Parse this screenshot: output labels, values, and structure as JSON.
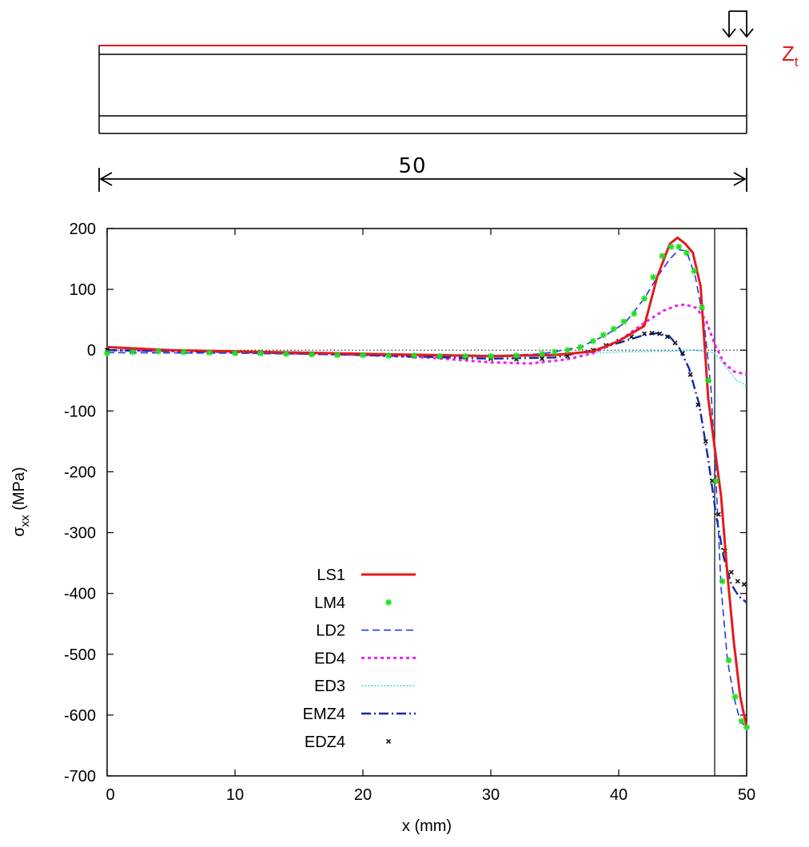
{
  "colors": {
    "LS1": "#e41a1c",
    "LM4": "#22dd22",
    "LD2": "#1f3fdd",
    "ED4": "#ee22ee",
    "ED3": "#22dddd",
    "EMZ4": "#0a2aaa",
    "EDZ4": "#111111",
    "beam_top": "#e41a1c",
    "beam_label": "#e41a1c"
  },
  "schematic": {
    "top_label": "Z",
    "top_label_sub": "t",
    "length_label": "50",
    "load_icon": "double-down-arrow-icon"
  },
  "chart_data": {
    "type": "line",
    "xlabel": "x (mm)",
    "ylabel_main": "σ",
    "ylabel_sub": "xx",
    "ylabel_unit": " (MPa)",
    "xlim": [
      0,
      50
    ],
    "ylim": [
      -700,
      200
    ],
    "xticks": [
      0,
      10,
      20,
      30,
      40,
      50
    ],
    "yticks": [
      200,
      100,
      0,
      -100,
      -200,
      -300,
      -400,
      -500,
      -600,
      -700
    ],
    "grid": false,
    "zero_line": true,
    "vertical_marker_x": 47.5,
    "legend_position": "lower-left",
    "series": [
      {
        "name": "LS1",
        "style": "solid",
        "x": [
          0,
          5,
          10,
          15,
          20,
          25,
          30,
          35,
          38,
          40,
          42,
          43,
          44,
          44.6,
          45.2,
          45.8,
          46.4,
          47,
          47.5,
          48,
          48.5,
          49,
          49.5,
          50
        ],
        "y": [
          5,
          0,
          -2,
          -4,
          -6,
          -8,
          -10,
          -8,
          -2,
          15,
          40,
          120,
          175,
          185,
          175,
          160,
          105,
          -80,
          -160,
          -240,
          -370,
          -480,
          -570,
          -620
        ]
      },
      {
        "name": "LM4",
        "style": "markers",
        "x": [
          0,
          2,
          4,
          6,
          8,
          10,
          12,
          14,
          16,
          18,
          20,
          22,
          24,
          26,
          28,
          30,
          32,
          34,
          35,
          36,
          37,
          38,
          38.8,
          39.6,
          40.4,
          41.2,
          42,
          42.7,
          43.4,
          44.1,
          44.7,
          45.3,
          45.9,
          46.5,
          47,
          47.6,
          48.1,
          48.6,
          49.1,
          49.6,
          50
        ],
        "y": [
          -5,
          -3,
          -2,
          -3,
          -4,
          -5,
          -5,
          -6,
          -7,
          -8,
          -8,
          -9,
          -9,
          -10,
          -10,
          -10,
          -9,
          -6,
          -3,
          0,
          5,
          15,
          25,
          35,
          47,
          60,
          85,
          120,
          155,
          170,
          170,
          160,
          130,
          70,
          -50,
          -215,
          -380,
          -510,
          -570,
          -610,
          -620
        ]
      },
      {
        "name": "LD2",
        "style": "dash",
        "x": [
          0,
          10,
          20,
          30,
          34,
          37,
          39,
          40.5,
          42,
          43,
          44,
          44.7,
          45.3,
          46,
          46.7,
          47.2,
          47.6,
          48,
          48.5,
          49,
          49.5,
          50
        ],
        "y": [
          -4,
          -5,
          -8,
          -10,
          -6,
          5,
          25,
          45,
          85,
          120,
          150,
          165,
          163,
          120,
          40,
          -60,
          -210,
          -390,
          -510,
          -570,
          -610,
          -620
        ]
      },
      {
        "name": "ED4",
        "style": "dotted-thick",
        "x": [
          0,
          10,
          20,
          25,
          30,
          33,
          36,
          38,
          40,
          42,
          43.5,
          44.5,
          45.2,
          46,
          46.8,
          47.5,
          48.2,
          49,
          50
        ],
        "y": [
          0,
          -3,
          -8,
          -12,
          -20,
          -22,
          -15,
          -5,
          15,
          45,
          65,
          73,
          75,
          70,
          50,
          10,
          -20,
          -35,
          -40
        ]
      },
      {
        "name": "ED3",
        "style": "dotted",
        "x": [
          0,
          10,
          20,
          30,
          35,
          40,
          44,
          46,
          47.5,
          48.5,
          49.2,
          50
        ],
        "y": [
          0,
          -2,
          -5,
          -8,
          -6,
          -3,
          -2,
          0,
          -5,
          -30,
          -50,
          -58
        ]
      },
      {
        "name": "EMZ4",
        "style": "dash-dot",
        "x": [
          0,
          10,
          20,
          30,
          35,
          38,
          40,
          42,
          43,
          44,
          44.7,
          45.5,
          46.3,
          47,
          47.6,
          48.2,
          48.8,
          49.4,
          50
        ],
        "y": [
          0,
          -3,
          -8,
          -14,
          -12,
          0,
          12,
          25,
          28,
          22,
          5,
          -30,
          -90,
          -180,
          -270,
          -340,
          -385,
          -405,
          -415
        ]
      },
      {
        "name": "EDZ4",
        "style": "markers",
        "x": [
          0,
          2,
          4,
          6,
          8,
          10,
          12,
          14,
          16,
          18,
          20,
          22,
          24,
          26,
          28,
          30,
          32,
          34,
          36,
          38,
          39,
          40,
          41,
          42,
          42.6,
          43.2,
          43.8,
          44.4,
          45,
          45.6,
          46.2,
          46.8,
          47.3,
          47.8,
          48.3,
          48.8,
          49.3,
          49.8
        ],
        "y": [
          0,
          -1,
          -2,
          -3,
          -3,
          -4,
          -4,
          -5,
          -6,
          -7,
          -8,
          -9,
          -10,
          -11,
          -12,
          -14,
          -15,
          -14,
          -10,
          0,
          8,
          15,
          22,
          27,
          28,
          27,
          22,
          12,
          -5,
          -40,
          -90,
          -150,
          -215,
          -270,
          -330,
          -365,
          -380,
          -385
        ]
      }
    ]
  }
}
